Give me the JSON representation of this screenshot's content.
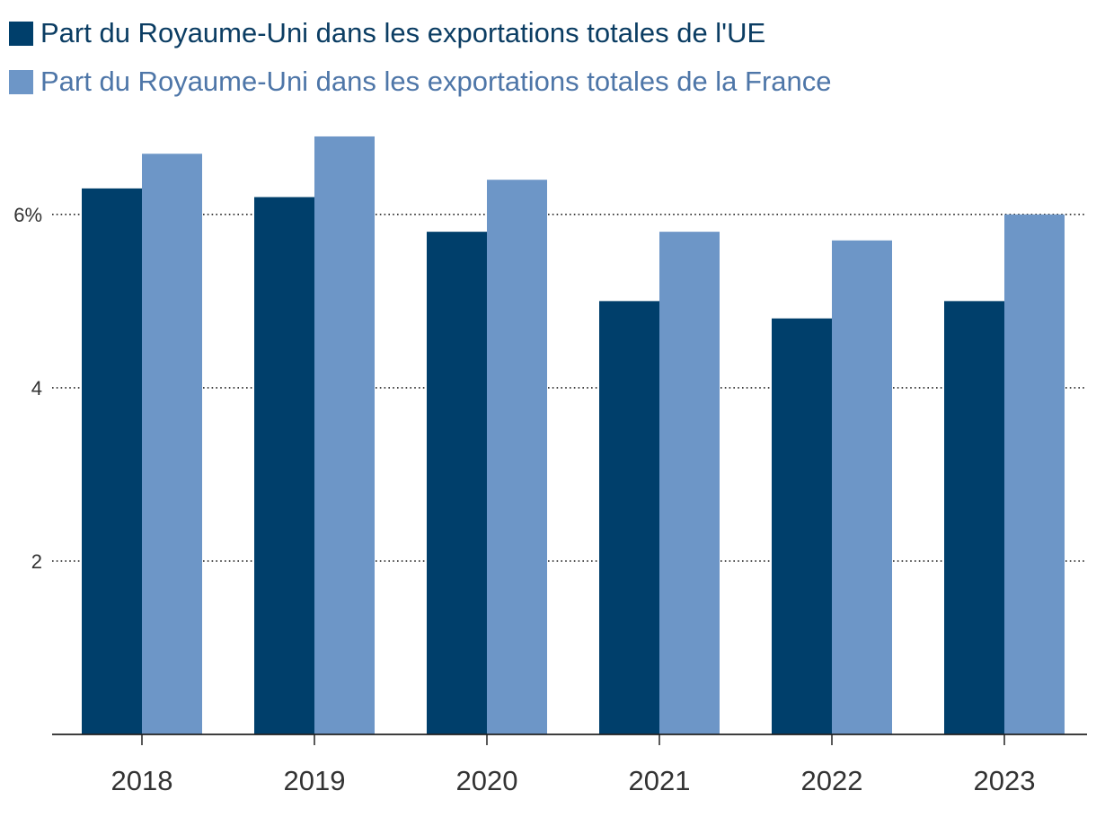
{
  "legend": {
    "items": [
      {
        "label": "Part du Royaume-Uni dans les exportations totales de l'UE",
        "color": "#003f6b",
        "text_color": "#0b3d63"
      },
      {
        "label": "Part du Royaume-Uni dans les exportations totales de la France",
        "color": "#6d96c7",
        "text_color": "#4e76a8"
      }
    ]
  },
  "chart_data": {
    "type": "bar",
    "categories": [
      "2018",
      "2019",
      "2020",
      "2021",
      "2022",
      "2023"
    ],
    "series": [
      {
        "name": "Part du Royaume-Uni dans les exportations totales de l'UE",
        "color": "#003f6b",
        "values": [
          6.3,
          6.2,
          5.8,
          5.0,
          4.8,
          5.0
        ]
      },
      {
        "name": "Part du Royaume-Uni dans les exportations totales de la France",
        "color": "#6d96c7",
        "values": [
          6.7,
          6.9,
          6.4,
          5.8,
          5.7,
          6.0
        ]
      }
    ],
    "yticks": [
      {
        "value": 2,
        "label": "2"
      },
      {
        "value": 4,
        "label": "4"
      },
      {
        "value": 6,
        "label": "6%"
      }
    ],
    "ylim": [
      0,
      7.2
    ],
    "grid": true,
    "legend_position": "top-left"
  }
}
